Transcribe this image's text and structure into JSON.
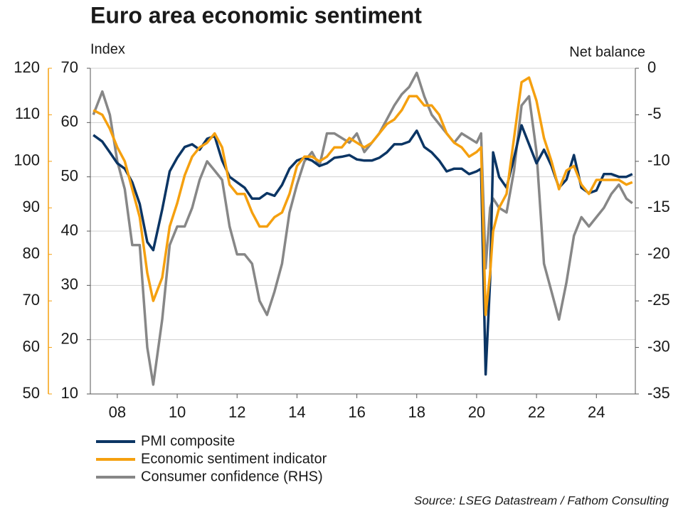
{
  "chart_data": {
    "type": "line",
    "title": "Euro area economic sentiment",
    "y_label": "Index",
    "y2_label": "Net balance",
    "source": "Source: LSEG Datastream / Fathom Consulting",
    "x": [
      2007.2,
      2007.5,
      2007.75,
      2008,
      2008.25,
      2008.5,
      2008.75,
      2009,
      2009.2,
      2009.5,
      2009.75,
      2010,
      2010.25,
      2010.5,
      2010.75,
      2011,
      2011.25,
      2011.5,
      2011.75,
      2012,
      2012.25,
      2012.5,
      2012.75,
      2013,
      2013.25,
      2013.5,
      2013.75,
      2014,
      2014.25,
      2014.5,
      2014.75,
      2015,
      2015.25,
      2015.5,
      2015.75,
      2016,
      2016.25,
      2016.5,
      2016.75,
      2017,
      2017.25,
      2017.5,
      2017.75,
      2018,
      2018.25,
      2018.5,
      2018.75,
      2019,
      2019.25,
      2019.5,
      2019.75,
      2020,
      2020.15,
      2020.3,
      2020.45,
      2020.55,
      2020.75,
      2021,
      2021.25,
      2021.5,
      2021.75,
      2022,
      2022.25,
      2022.5,
      2022.75,
      2023,
      2023.25,
      2023.5,
      2023.75,
      2024,
      2024.25,
      2024.5,
      2024.75,
      2025,
      2025.2
    ],
    "xlim": [
      2007.1,
      2025.3
    ],
    "xticks": [
      {
        "value": 2008,
        "label": "08"
      },
      {
        "value": 2010,
        "label": "10"
      },
      {
        "value": 2012,
        "label": "12"
      },
      {
        "value": 2014,
        "label": "14"
      },
      {
        "value": 2016,
        "label": "16"
      },
      {
        "value": 2018,
        "label": "18"
      },
      {
        "value": 2020,
        "label": "20"
      },
      {
        "value": 2022,
        "label": "22"
      },
      {
        "value": 2024,
        "label": "24"
      }
    ],
    "ylim": [
      10,
      70
    ],
    "yticks": [
      10,
      20,
      30,
      40,
      50,
      60,
      70
    ],
    "y3lim": [
      50,
      120
    ],
    "y3ticks": [
      50,
      60,
      70,
      80,
      90,
      100,
      110,
      120
    ],
    "y2lim": [
      -35,
      0
    ],
    "y2ticks": [
      -35,
      -30,
      -25,
      -20,
      -15,
      -10,
      -5,
      0
    ],
    "grid": true,
    "series": [
      {
        "name": "PMI composite",
        "color": "#0b3564",
        "axis": "y",
        "values": [
          57.7,
          56.5,
          54.5,
          52.5,
          51.5,
          49,
          45,
          38,
          36.5,
          44,
          51,
          53.5,
          55.5,
          56,
          55,
          57,
          57.5,
          53,
          50,
          49,
          48,
          46,
          46,
          47,
          46.5,
          48.5,
          51.5,
          53,
          53.5,
          53,
          52,
          52.5,
          53.5,
          53.7,
          54,
          53.2,
          53,
          53,
          53.5,
          54.5,
          56,
          56,
          56.5,
          58.5,
          55.5,
          54.5,
          53,
          51,
          51.5,
          51.5,
          50.5,
          51,
          51.5,
          13.6,
          31,
          54.5,
          50,
          48,
          53.5,
          59.5,
          56,
          52.5,
          55,
          52,
          48,
          49.5,
          54,
          48,
          47,
          47.5,
          50.5,
          50.5,
          50,
          50,
          50.5
        ]
      },
      {
        "name": "Economic sentiment indicator",
        "color": "#f5a00f",
        "axis": "y3",
        "values": [
          111,
          110,
          107,
          103,
          100,
          94,
          88,
          76,
          70,
          75,
          86,
          91,
          97,
          101,
          103,
          104,
          106,
          103,
          95,
          93,
          93,
          89,
          86,
          86,
          88,
          89,
          93,
          99,
          101,
          101,
          100,
          101,
          103,
          103,
          105,
          104,
          103,
          104,
          106,
          108,
          109,
          111,
          114,
          114,
          112,
          112,
          110,
          106,
          104,
          103,
          101,
          102,
          103,
          67,
          76,
          85,
          90,
          93,
          105,
          117,
          118,
          113,
          105,
          100,
          94,
          98,
          99,
          95,
          93,
          96,
          96,
          96,
          96,
          95,
          95.5
        ]
      },
      {
        "name": "Consumer confidence (RHS)",
        "color": "#878787",
        "axis": "y2",
        "values": [
          -5,
          -2.5,
          -5,
          -10,
          -13,
          -19,
          -19,
          -30,
          -34,
          -27,
          -19,
          -17,
          -17,
          -15,
          -12,
          -10,
          -11,
          -12,
          -17,
          -20,
          -20,
          -21,
          -25,
          -26.5,
          -24,
          -21,
          -15.5,
          -12.5,
          -10,
          -9,
          -10.5,
          -7,
          -7,
          -7.5,
          -8,
          -7,
          -9,
          -8,
          -7,
          -5.5,
          -4,
          -2.8,
          -2,
          -0.5,
          -3,
          -5,
          -6,
          -7,
          -8,
          -7,
          -7.5,
          -8,
          -7,
          -21.5,
          -15,
          -14,
          -15,
          -15.5,
          -11,
          -4,
          -3,
          -9,
          -21,
          -24,
          -27,
          -23,
          -18,
          -16,
          -17,
          -16,
          -15,
          -13.5,
          -12.5,
          -14,
          -14.5
        ]
      }
    ]
  }
}
